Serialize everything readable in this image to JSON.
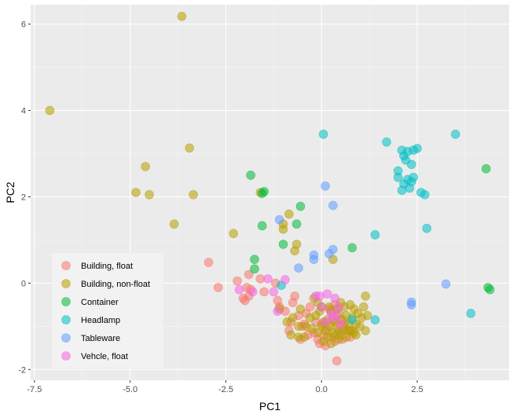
{
  "chart_data": {
    "type": "scatter",
    "xlabel": "PC1",
    "ylabel": "PC2",
    "xlim": [
      -7.6,
      4.9
    ],
    "ylim": [
      -2.25,
      6.45
    ],
    "x_ticks": [
      -7.5,
      -5.0,
      -2.5,
      0.0,
      2.5
    ],
    "x_tick_labels": [
      "-7.5",
      "-5.0",
      "-2.5",
      "0.0",
      "2.5"
    ],
    "y_ticks": [
      -2,
      0,
      2,
      4,
      6
    ],
    "y_tick_labels": [
      "-2",
      "0",
      "2",
      "4",
      "6"
    ],
    "grid": true,
    "legend_position": "inside-bottom-left",
    "series": [
      {
        "name": "Building, float",
        "color": "#F8766D",
        "points": [
          [
            -2.95,
            0.48
          ],
          [
            -2.7,
            -0.1
          ],
          [
            -2.2,
            0.05
          ],
          [
            -2.05,
            -0.35
          ],
          [
            -2.0,
            -0.4
          ],
          [
            -1.9,
            -0.3
          ],
          [
            -1.85,
            -0.15
          ],
          [
            -1.95,
            -0.1
          ],
          [
            -1.9,
            0.2
          ],
          [
            -1.6,
            0.1
          ],
          [
            -1.5,
            -0.2
          ],
          [
            -1.15,
            -0.4
          ],
          [
            -1.1,
            -0.55
          ],
          [
            -1.2,
            0.0
          ],
          [
            -0.95,
            -0.65
          ],
          [
            -0.8,
            -0.9
          ],
          [
            -0.75,
            -0.45
          ],
          [
            -0.7,
            -0.3
          ],
          [
            -0.6,
            -0.75
          ],
          [
            -0.5,
            -1.0
          ],
          [
            -0.4,
            -0.7
          ],
          [
            -0.3,
            -0.55
          ],
          [
            -0.2,
            -1.15
          ],
          [
            -0.15,
            -0.9
          ],
          [
            -0.35,
            -1.2
          ],
          [
            -0.1,
            -1.3
          ],
          [
            0.0,
            -0.95
          ],
          [
            0.05,
            -1.2
          ],
          [
            0.15,
            -1.05
          ],
          [
            0.2,
            -0.6
          ],
          [
            0.25,
            -1.25
          ],
          [
            0.35,
            -1.35
          ],
          [
            0.45,
            -1.1
          ],
          [
            0.5,
            -0.85
          ],
          [
            0.4,
            -1.8
          ],
          [
            0.55,
            -1.3
          ],
          [
            0.6,
            -0.95
          ],
          [
            0.7,
            -1.1
          ],
          [
            0.3,
            -0.85
          ],
          [
            -0.55,
            -1.3
          ],
          [
            -0.85,
            -1.1
          ],
          [
            0.1,
            -1.45
          ],
          [
            -0.05,
            -1.4
          ],
          [
            0.35,
            -0.5
          ],
          [
            -0.45,
            -0.95
          ],
          [
            0.75,
            -1.25
          ]
        ]
      },
      {
        "name": "Building, non-float",
        "color": "#B79F00",
        "points": [
          [
            -7.1,
            4.0
          ],
          [
            -3.65,
            6.18
          ],
          [
            -4.6,
            2.7
          ],
          [
            -4.85,
            2.1
          ],
          [
            -4.5,
            2.05
          ],
          [
            -3.45,
            3.13
          ],
          [
            -3.35,
            2.05
          ],
          [
            -3.85,
            1.37
          ],
          [
            -2.3,
            1.15
          ],
          [
            -1.0,
            1.37
          ],
          [
            -0.85,
            1.6
          ],
          [
            -1.0,
            1.25
          ],
          [
            -0.65,
            0.9
          ],
          [
            -1.6,
            2.1
          ],
          [
            -0.7,
            0.75
          ],
          [
            0.3,
            0.55
          ],
          [
            -1.1,
            -0.6
          ],
          [
            -0.9,
            -0.9
          ],
          [
            -0.8,
            -1.2
          ],
          [
            -0.6,
            -1.0
          ],
          [
            -0.55,
            -0.6
          ],
          [
            -0.4,
            -1.0
          ],
          [
            -0.3,
            -0.8
          ],
          [
            -0.25,
            -1.05
          ],
          [
            -0.2,
            -0.35
          ],
          [
            -0.15,
            -0.75
          ],
          [
            -0.1,
            -1.15
          ],
          [
            0.0,
            -0.55
          ],
          [
            0.05,
            -0.9
          ],
          [
            0.1,
            -1.1
          ],
          [
            0.15,
            -0.85
          ],
          [
            0.2,
            -1.0
          ],
          [
            0.25,
            -0.65
          ],
          [
            0.3,
            -1.15
          ],
          [
            0.35,
            -0.9
          ],
          [
            0.4,
            -1.0
          ],
          [
            0.45,
            -0.7
          ],
          [
            0.5,
            -1.2
          ],
          [
            0.55,
            -0.85
          ],
          [
            0.6,
            -1.05
          ],
          [
            0.65,
            -0.75
          ],
          [
            0.7,
            -0.95
          ],
          [
            0.75,
            -1.1
          ],
          [
            0.8,
            -0.8
          ],
          [
            0.85,
            -1.15
          ],
          [
            0.9,
            -0.95
          ],
          [
            0.95,
            -0.7
          ],
          [
            0.9,
            -1.2
          ],
          [
            1.0,
            -1.0
          ],
          [
            1.05,
            -0.8
          ],
          [
            1.1,
            -0.55
          ],
          [
            1.15,
            -0.3
          ],
          [
            1.2,
            -0.75
          ],
          [
            0.85,
            -0.6
          ],
          [
            0.75,
            -0.5
          ],
          [
            0.65,
            -1.25
          ],
          [
            0.55,
            -1.1
          ],
          [
            0.45,
            -1.3
          ],
          [
            0.35,
            -1.2
          ],
          [
            0.25,
            -1.4
          ],
          [
            0.15,
            -1.25
          ],
          [
            0.05,
            -1.35
          ],
          [
            -0.05,
            -0.65
          ],
          [
            -0.1,
            -0.45
          ],
          [
            0.0,
            -1.0
          ],
          [
            0.2,
            -0.55
          ],
          [
            0.4,
            -0.6
          ],
          [
            0.6,
            -0.55
          ],
          [
            0.8,
            -1.1
          ],
          [
            -0.45,
            -1.25
          ],
          [
            -0.6,
            -1.25
          ],
          [
            -0.75,
            -0.8
          ],
          [
            1.15,
            -1.1
          ],
          [
            0.5,
            -0.45
          ]
        ]
      },
      {
        "name": "Container",
        "color": "#00BA38",
        "points": [
          [
            -1.85,
            2.5
          ],
          [
            -1.5,
            2.12
          ],
          [
            -1.55,
            2.08
          ],
          [
            -1.55,
            1.33
          ],
          [
            -0.65,
            1.37
          ],
          [
            -0.55,
            1.78
          ],
          [
            -1.0,
            0.9
          ],
          [
            -1.75,
            0.55
          ],
          [
            -1.75,
            0.33
          ],
          [
            0.8,
            0.82
          ],
          [
            4.3,
            2.65
          ],
          [
            4.35,
            -0.1
          ],
          [
            4.4,
            -0.15
          ]
        ]
      },
      {
        "name": "Headlamp",
        "color": "#00BFC4",
        "points": [
          [
            0.05,
            3.45
          ],
          [
            1.7,
            3.27
          ],
          [
            2.1,
            3.08
          ],
          [
            2.15,
            2.95
          ],
          [
            2.25,
            3.05
          ],
          [
            2.4,
            3.08
          ],
          [
            2.5,
            3.12
          ],
          [
            2.2,
            2.85
          ],
          [
            2.35,
            2.75
          ],
          [
            2.0,
            2.6
          ],
          [
            2.0,
            2.45
          ],
          [
            2.15,
            2.3
          ],
          [
            2.25,
            2.4
          ],
          [
            2.35,
            2.35
          ],
          [
            2.4,
            2.45
          ],
          [
            2.1,
            2.15
          ],
          [
            2.3,
            2.2
          ],
          [
            2.6,
            2.1
          ],
          [
            2.7,
            2.05
          ],
          [
            2.75,
            1.27
          ],
          [
            3.5,
            3.45
          ],
          [
            1.4,
            1.12
          ],
          [
            -1.05,
            -0.05
          ],
          [
            0.8,
            -0.85
          ],
          [
            1.4,
            -0.85
          ],
          [
            3.9,
            -0.7
          ]
        ]
      },
      {
        "name": "Tableware",
        "color": "#619CFF",
        "points": [
          [
            0.1,
            2.25
          ],
          [
            0.3,
            1.8
          ],
          [
            -1.1,
            1.47
          ],
          [
            -0.2,
            0.65
          ],
          [
            -0.2,
            0.55
          ],
          [
            0.2,
            0.68
          ],
          [
            0.3,
            0.78
          ],
          [
            -0.6,
            0.35
          ],
          [
            3.25,
            -0.02
          ],
          [
            2.35,
            -0.44
          ],
          [
            2.35,
            -0.5
          ]
        ]
      },
      {
        "name": "Vehcle, float",
        "color": "#F564E3",
        "points": [
          [
            -2.15,
            -0.15
          ],
          [
            -1.8,
            -0.2
          ],
          [
            -1.4,
            0.1
          ],
          [
            -1.25,
            -0.2
          ],
          [
            -1.15,
            -0.65
          ],
          [
            -0.95,
            0.08
          ],
          [
            -0.15,
            -0.3
          ],
          [
            -0.05,
            -0.3
          ],
          [
            0.0,
            -0.55
          ],
          [
            0.15,
            -0.25
          ],
          [
            0.25,
            -0.7
          ],
          [
            0.35,
            -0.35
          ],
          [
            0.45,
            -0.55
          ],
          [
            0.5,
            -0.95
          ],
          [
            0.3,
            -0.8
          ],
          [
            0.1,
            -0.9
          ],
          [
            0.4,
            -0.75
          ]
        ]
      }
    ]
  }
}
